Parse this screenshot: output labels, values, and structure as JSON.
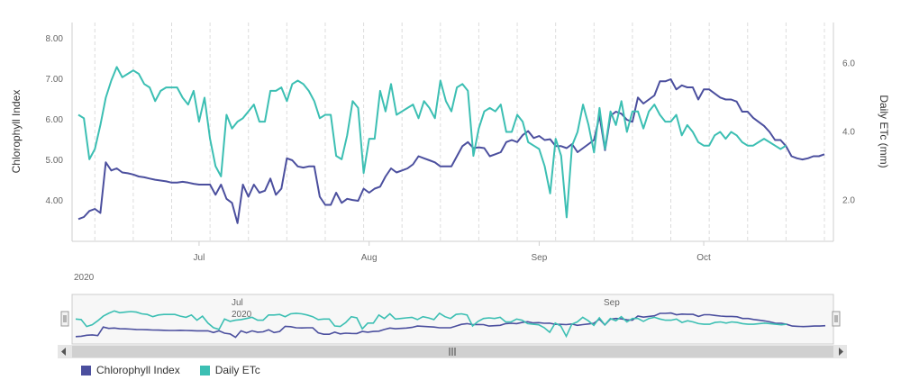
{
  "chart_data": {
    "type": "line",
    "x_start": "2020-06-09",
    "year_label": "2020",
    "x_ticks": [
      {
        "date": "2020-07-01",
        "label": "Jul"
      },
      {
        "date": "2020-08-01",
        "label": "Aug"
      },
      {
        "date": "2020-09-01",
        "label": "Sep"
      },
      {
        "date": "2020-10-01",
        "label": "Oct"
      }
    ],
    "y_left": {
      "label": "Chlorophyll Index",
      "min": 3.0,
      "max": 8.4,
      "ticks": [
        "4.00",
        "5.00",
        "6.00",
        "7.00",
        "8.00"
      ]
    },
    "y_right": {
      "label": "Daily ETc (mm)",
      "min": 0.8,
      "max": 7.2,
      "ticks": [
        "2.0",
        "4.0",
        "6.0"
      ]
    },
    "grid": "vertical dashed",
    "legend_position": "bottom-left",
    "series": [
      {
        "name": "Chlorophyll Index",
        "axis": "left",
        "color": "#4b4f9e",
        "values": [
          3.55,
          3.6,
          3.75,
          3.8,
          3.7,
          4.95,
          4.75,
          4.8,
          4.7,
          4.68,
          4.65,
          4.6,
          4.58,
          4.55,
          4.52,
          4.5,
          4.48,
          4.45,
          4.45,
          4.47,
          4.45,
          4.42,
          4.4,
          4.4,
          4.4,
          4.15,
          4.4,
          4.05,
          3.95,
          3.45,
          4.4,
          4.1,
          4.4,
          4.2,
          4.25,
          4.55,
          4.15,
          4.3,
          5.05,
          5.0,
          4.85,
          4.82,
          4.85,
          4.85,
          4.1,
          3.9,
          3.9,
          4.2,
          3.95,
          4.05,
          4.02,
          4.0,
          4.3,
          4.2,
          4.3,
          4.35,
          4.6,
          4.8,
          4.7,
          4.75,
          4.8,
          4.9,
          5.1,
          5.05,
          5.0,
          4.95,
          4.85,
          4.85,
          4.85,
          5.1,
          5.35,
          5.45,
          5.3,
          5.32,
          5.3,
          5.1,
          5.15,
          5.2,
          5.45,
          5.5,
          5.45,
          5.62,
          5.72,
          5.55,
          5.6,
          5.5,
          5.52,
          5.35,
          5.35,
          5.3,
          5.4,
          5.2,
          5.3,
          5.4,
          5.5,
          6.1,
          5.25,
          6.1,
          6.2,
          6.15,
          6.0,
          5.95,
          6.55,
          6.4,
          6.5,
          6.6,
          6.95,
          6.95,
          7.0,
          6.75,
          6.85,
          6.8,
          6.8,
          6.5,
          6.75,
          6.75,
          6.65,
          6.55,
          6.5,
          6.5,
          6.45,
          6.2,
          6.2,
          6.05,
          5.95,
          5.85,
          5.7,
          5.5,
          5.5,
          5.35,
          5.1,
          5.05,
          5.02,
          5.05,
          5.1,
          5.1,
          5.15
        ]
      },
      {
        "name": "Daily ETc",
        "axis": "right",
        "color": "#3cbfb3",
        "values": [
          4.5,
          4.4,
          3.2,
          3.5,
          4.2,
          5.0,
          5.5,
          5.9,
          5.6,
          5.7,
          5.8,
          5.7,
          5.4,
          5.3,
          4.9,
          5.2,
          5.3,
          5.3,
          5.3,
          5.0,
          4.8,
          5.2,
          4.3,
          5.0,
          3.8,
          3.0,
          2.7,
          4.5,
          4.1,
          4.3,
          4.4,
          4.6,
          4.8,
          4.3,
          4.3,
          5.2,
          5.2,
          5.3,
          4.9,
          5.4,
          5.5,
          5.4,
          5.2,
          4.9,
          4.4,
          4.5,
          4.5,
          3.3,
          3.2,
          3.9,
          4.9,
          4.7,
          2.8,
          3.8,
          3.8,
          5.2,
          4.6,
          5.4,
          4.5,
          4.6,
          4.7,
          4.8,
          4.4,
          4.9,
          4.7,
          4.4,
          5.5,
          4.9,
          4.6,
          5.3,
          5.4,
          5.2,
          3.3,
          4.1,
          4.6,
          4.7,
          4.6,
          4.8,
          4.0,
          4.0,
          4.5,
          4.3,
          3.7,
          3.6,
          3.5,
          3.0,
          2.2,
          3.8,
          3.3,
          1.5,
          3.6,
          4.0,
          4.8,
          4.2,
          3.4,
          4.7,
          3.5,
          4.6,
          4.2,
          4.9,
          4.0,
          4.6,
          4.6,
          4.1,
          4.6,
          4.8,
          4.5,
          4.3,
          4.3,
          4.5,
          3.9,
          4.2,
          4.0,
          3.7,
          3.6,
          3.6,
          3.9,
          4.0,
          3.8,
          4.0,
          3.9,
          3.7,
          3.6,
          3.6,
          3.7,
          3.8,
          3.7,
          3.6,
          3.5,
          3.6
        ]
      }
    ]
  },
  "navigator": {
    "year_label": "2020",
    "labels": [
      "Jul",
      "Sep"
    ]
  }
}
